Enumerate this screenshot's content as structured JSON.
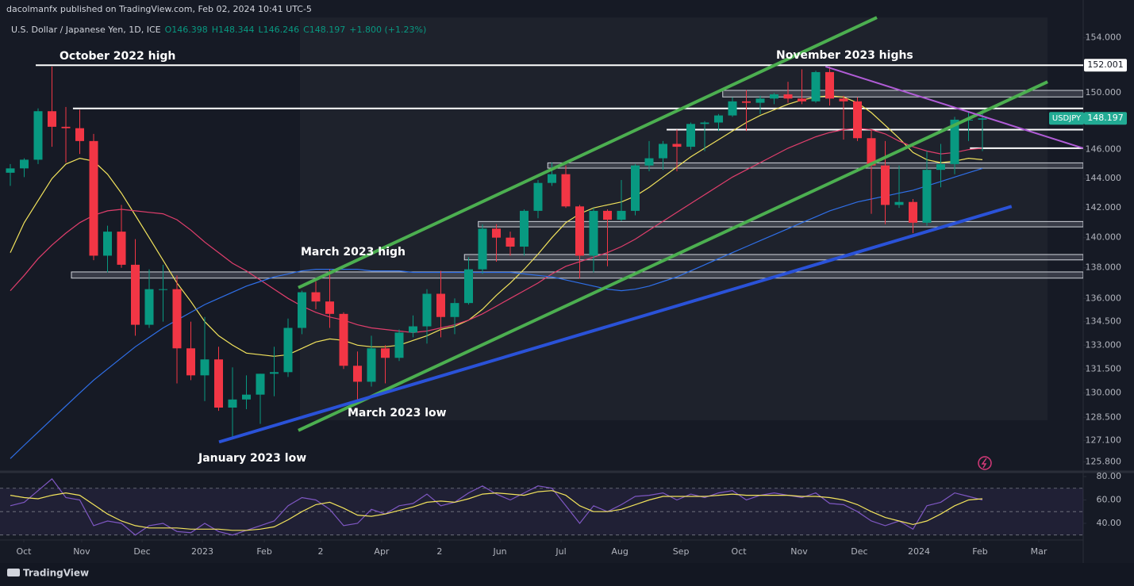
{
  "header": {
    "publisher": "dacolmanfx published on TradingView.com, Feb 02, 2024 10:41 UTC-5"
  },
  "footer": {
    "brand": "TradingView"
  },
  "chart_data": [
    {
      "type": "candlestick",
      "title": "U.S. Dollar / Japanese Yen, 1D, ICE",
      "ohlc_legend": [
        "O146.398",
        "H148.344",
        "L146.246",
        "C148.197"
      ],
      "change": "+1.800 (+1.23%)",
      "up_color": "#089981",
      "down_color": "#f23645",
      "open": [
        144.4,
        144.7,
        145.3,
        148.7,
        147.6,
        147.5,
        146.6,
        138.8,
        140.4,
        138.2,
        134.3,
        136.6,
        136.6,
        132.8,
        131.1,
        132.1,
        129.1,
        129.6,
        129.9,
        131.2,
        131.3,
        134.1,
        136.4,
        135.8,
        135.0,
        131.7,
        130.7,
        132.8,
        132.2,
        133.8,
        134.2,
        136.3,
        134.8,
        135.7,
        137.9,
        140.6,
        140.0,
        139.4,
        141.8,
        143.7,
        144.3,
        142.1,
        138.8,
        141.8,
        141.2,
        141.8,
        144.9,
        145.4,
        146.4,
        146.2,
        147.8,
        147.9,
        148.4,
        149.4,
        149.3,
        149.6,
        149.9,
        149.6,
        149.4,
        151.5,
        149.6,
        149.4,
        146.8,
        144.9,
        142.2,
        142.4,
        141.0,
        144.6,
        145.0,
        148.1,
        148.1
      ],
      "high": [
        145.0,
        145.4,
        148.9,
        151.9,
        149.0,
        148.8,
        147.1,
        140.8,
        142.2,
        139.9,
        137.9,
        138.2,
        137.5,
        134.5,
        134.8,
        132.9,
        131.6,
        131.1,
        131.2,
        132.9,
        134.7,
        136.5,
        137.1,
        137.9,
        135.1,
        132.6,
        133.6,
        133.0,
        134.0,
        134.9,
        136.6,
        137.8,
        136.0,
        138.7,
        140.9,
        140.9,
        140.4,
        141.9,
        143.9,
        145.1,
        144.9,
        142.2,
        142.0,
        141.9,
        143.9,
        145.0,
        146.6,
        146.6,
        147.4,
        147.9,
        148.0,
        148.5,
        149.7,
        150.2,
        149.8,
        150.0,
        150.8,
        151.7,
        151.6,
        151.9,
        149.8,
        149.7,
        147.4,
        146.6,
        144.9,
        142.6,
        145.9,
        146.4,
        148.3,
        148.7,
        148.8
      ],
      "low": [
        143.5,
        144.1,
        145.0,
        146.2,
        145.1,
        145.7,
        138.5,
        137.7,
        138.0,
        133.6,
        134.1,
        134.5,
        130.6,
        130.8,
        129.5,
        128.9,
        127.2,
        129.0,
        128.1,
        129.8,
        131.0,
        133.7,
        135.3,
        134.1,
        131.5,
        129.6,
        130.4,
        130.6,
        132.0,
        133.5,
        133.1,
        133.5,
        133.7,
        135.6,
        137.6,
        138.4,
        138.8,
        138.8,
        141.3,
        143.5,
        142.0,
        137.3,
        137.7,
        138.1,
        141.1,
        141.5,
        144.5,
        144.6,
        144.5,
        146.0,
        145.9,
        147.3,
        148.3,
        147.3,
        148.5,
        149.2,
        149.3,
        149.2,
        149.3,
        149.1,
        146.7,
        146.6,
        141.6,
        140.9,
        142.0,
        140.3,
        140.8,
        143.4,
        144.3,
        146.6,
        145.9
      ],
      "close": [
        144.7,
        145.3,
        148.7,
        147.6,
        147.5,
        146.6,
        138.8,
        140.4,
        138.2,
        134.3,
        136.6,
        136.6,
        132.8,
        131.1,
        132.1,
        129.1,
        129.6,
        129.9,
        131.2,
        131.3,
        134.1,
        136.4,
        135.8,
        135.0,
        131.7,
        130.7,
        132.8,
        132.2,
        133.8,
        134.2,
        136.3,
        134.8,
        135.7,
        137.9,
        140.6,
        140.0,
        139.4,
        141.8,
        143.7,
        144.3,
        142.1,
        138.8,
        141.8,
        141.2,
        141.8,
        144.9,
        145.4,
        146.4,
        146.2,
        147.8,
        147.9,
        148.4,
        149.4,
        149.3,
        149.6,
        149.9,
        149.6,
        149.4,
        151.5,
        149.6,
        149.4,
        146.8,
        144.9,
        142.2,
        142.4,
        141.0,
        144.6,
        145.0,
        148.1,
        148.1,
        148.197
      ],
      "moving_averages": [
        {
          "color": "#f2e35c",
          "values": [
            139,
            141,
            142.5,
            144,
            145,
            145.4,
            145.2,
            144.3,
            143,
            141.5,
            140,
            138.5,
            137,
            135.8,
            134.5,
            133.6,
            133,
            132.5,
            132.4,
            132.3,
            132.4,
            132.8,
            133.2,
            133.4,
            133.3,
            133,
            132.9,
            132.9,
            133,
            133.3,
            133.6,
            134,
            134.2,
            134.6,
            135.3,
            136.2,
            137,
            137.9,
            138.9,
            140,
            141,
            141.6,
            142,
            142.2,
            142.4,
            142.8,
            143.4,
            144.1,
            144.8,
            145.5,
            146.1,
            146.7,
            147.3,
            147.9,
            148.4,
            148.8,
            149.2,
            149.5,
            149.7,
            149.8,
            149.7,
            149.3,
            148.6,
            147.7,
            146.8,
            145.8,
            145.3,
            145.1,
            145.2,
            145.4,
            145.3
          ]
        },
        {
          "color": "#e03e6c",
          "values": [
            136.5,
            137.5,
            138.6,
            139.5,
            140.3,
            141,
            141.5,
            141.8,
            141.9,
            141.8,
            141.7,
            141.6,
            141.2,
            140.5,
            139.7,
            139,
            138.3,
            137.8,
            137.2,
            136.6,
            136,
            135.5,
            135.1,
            134.8,
            134.6,
            134.3,
            134.1,
            134,
            133.9,
            133.8,
            133.9,
            134.1,
            134.3,
            134.6,
            135,
            135.5,
            136,
            136.5,
            137,
            137.6,
            138.1,
            138.4,
            138.7,
            139,
            139.4,
            139.9,
            140.5,
            141.1,
            141.7,
            142.3,
            142.9,
            143.5,
            144.1,
            144.6,
            145.1,
            145.6,
            146.1,
            146.5,
            146.9,
            147.2,
            147.4,
            147.5,
            147.4,
            147.1,
            146.6,
            146.2,
            145.9,
            145.7,
            145.8,
            146,
            146.1
          ]
        },
        {
          "color": "#2f6fe8",
          "values": [
            126,
            126.8,
            127.6,
            128.4,
            129.2,
            130,
            130.8,
            131.5,
            132.2,
            132.9,
            133.5,
            134.1,
            134.6,
            135.1,
            135.6,
            136,
            136.4,
            136.8,
            137.1,
            137.4,
            137.6,
            137.8,
            137.9,
            137.9,
            137.9,
            137.9,
            137.8,
            137.8,
            137.8,
            137.7,
            137.7,
            137.7,
            137.7,
            137.7,
            137.7,
            137.7,
            137.7,
            137.6,
            137.5,
            137.4,
            137.2,
            137,
            136.8,
            136.6,
            136.5,
            136.6,
            136.8,
            137.1,
            137.4,
            137.8,
            138.2,
            138.6,
            139,
            139.4,
            139.8,
            140.2,
            140.6,
            141,
            141.4,
            141.8,
            142.1,
            142.4,
            142.6,
            142.8,
            143,
            143.2,
            143.5,
            143.8,
            144.1,
            144.4,
            144.7
          ]
        }
      ],
      "levels": [
        {
          "value": 152.001,
          "from": 1.83,
          "label": "152.001"
        },
        {
          "value": 148.9,
          "from": 4.51
        },
        {
          "value": 147.4,
          "from": 47.26
        },
        {
          "value": 146.1,
          "from": 69.1
        }
      ],
      "zones": [
        {
          "low": 149.8,
          "high": 150.1,
          "from": 51.3
        },
        {
          "low": 144.8,
          "high": 145.0,
          "from": 38.7
        },
        {
          "low": 140.8,
          "high": 141.0,
          "from": 33.7
        },
        {
          "low": 138.6,
          "high": 138.8,
          "from": 32.7
        },
        {
          "low": 137.4,
          "high": 137.65,
          "from": 4.4
        }
      ],
      "trendlines": [
        {
          "color": "#4caf50",
          "x": [
            20.74,
            62.4
          ],
          "y": [
            136.7,
            155.5
          ]
        },
        {
          "color": "#4caf50",
          "x": [
            20.74,
            74.69
          ],
          "y": [
            127.7,
            150.8
          ]
        },
        {
          "color": "#2a52d8",
          "x": [
            15.03,
            72.1
          ],
          "y": [
            127.0,
            142.1
          ]
        },
        {
          "color": "#b05cd6",
          "x": [
            58.7,
            77.26
          ],
          "y": [
            151.9,
            146.1
          ]
        }
      ],
      "annotations": [
        "October 2022 high",
        "March 2023 high",
        "March 2023 low",
        "January 2023 low",
        "November 2023 highs"
      ],
      "last_price": {
        "symbol": "USDJPY",
        "value": 148.197,
        "label": "148.197"
      },
      "log_scale": true,
      "xlim": [
        -0.743,
        77.257
      ],
      "xticks": [
        {
          "value": 0.97,
          "label": "Oct"
        },
        {
          "value": 5.14,
          "label": "Nov"
        },
        {
          "value": 9.49,
          "label": "Dec"
        },
        {
          "value": 13.83,
          "label": "2023"
        },
        {
          "value": 18.29,
          "label": "Feb"
        },
        {
          "value": 22.34,
          "label": "2"
        },
        {
          "value": 26.74,
          "label": "Apr"
        },
        {
          "value": 30.91,
          "label": "2"
        },
        {
          "value": 35.26,
          "label": "Jun"
        },
        {
          "value": 39.66,
          "label": "Jul"
        },
        {
          "value": 43.89,
          "label": "Aug"
        },
        {
          "value": 48.29,
          "label": "Sep"
        },
        {
          "value": 52.46,
          "label": "Oct"
        },
        {
          "value": 56.8,
          "label": "Nov"
        },
        {
          "value": 61.14,
          "label": "Dec"
        },
        {
          "value": 65.43,
          "label": "2024"
        },
        {
          "value": 69.83,
          "label": "Feb"
        },
        {
          "value": 74.06,
          "label": "Mar"
        }
      ],
      "ylim": [
        125.3,
        156.8
      ],
      "yticks": [
        {
          "value": 154,
          "label": "154.000"
        },
        {
          "value": 150,
          "label": "150.000"
        },
        {
          "value": 146,
          "label": "146.000"
        },
        {
          "value": 144,
          "label": "144.000"
        },
        {
          "value": 142,
          "label": "142.000"
        },
        {
          "value": 140,
          "label": "140.000"
        },
        {
          "value": 138,
          "label": "138.000"
        },
        {
          "value": 136,
          "label": "136.000"
        },
        {
          "value": 134.5,
          "label": "134.500"
        },
        {
          "value": 133,
          "label": "133.000"
        },
        {
          "value": 131.5,
          "label": "131.500"
        },
        {
          "value": 130,
          "label": "130.000"
        },
        {
          "value": 128.5,
          "label": "128.500"
        },
        {
          "value": 127.1,
          "label": "127.100"
        },
        {
          "value": 125.8,
          "label": "125.800"
        }
      ],
      "grid": false
    },
    {
      "type": "line",
      "series": [
        {
          "color": "#7e57c2",
          "values": [
            55,
            58,
            68,
            78,
            62,
            60,
            38,
            42,
            40,
            30,
            38,
            40,
            33,
            32,
            40,
            33,
            30,
            34,
            38,
            42,
            55,
            62,
            60,
            52,
            38,
            40,
            52,
            48,
            55,
            57,
            65,
            55,
            58,
            66,
            72,
            65,
            60,
            66,
            72,
            70,
            55,
            40,
            55,
            50,
            56,
            63,
            64,
            66,
            60,
            65,
            62,
            66,
            68,
            60,
            64,
            66,
            64,
            62,
            66,
            57,
            56,
            50,
            42,
            38,
            42,
            35,
            55,
            58,
            66,
            63,
            60
          ]
        },
        {
          "color": "#f2e35c",
          "values": [
            64,
            62,
            61,
            64,
            66,
            64,
            56,
            48,
            42,
            38,
            36,
            36,
            36,
            35,
            35,
            35,
            34,
            34,
            35,
            37,
            43,
            50,
            56,
            58,
            53,
            47,
            46,
            48,
            51,
            54,
            58,
            59,
            58,
            61,
            65,
            66,
            65,
            64,
            67,
            68,
            64,
            55,
            50,
            50,
            52,
            56,
            60,
            63,
            63,
            63,
            63,
            64,
            65,
            64,
            64,
            64,
            64,
            63,
            63,
            62,
            60,
            56,
            50,
            45,
            42,
            39,
            42,
            48,
            55,
            60,
            61
          ]
        }
      ],
      "levels": [
        70,
        50,
        30
      ],
      "ylim": [
        26.4,
        82.7
      ],
      "yticks": [
        {
          "value": 80,
          "label": "80.00"
        },
        {
          "value": 60,
          "label": "60.00"
        },
        {
          "value": 40,
          "label": "40.00"
        }
      ]
    }
  ]
}
